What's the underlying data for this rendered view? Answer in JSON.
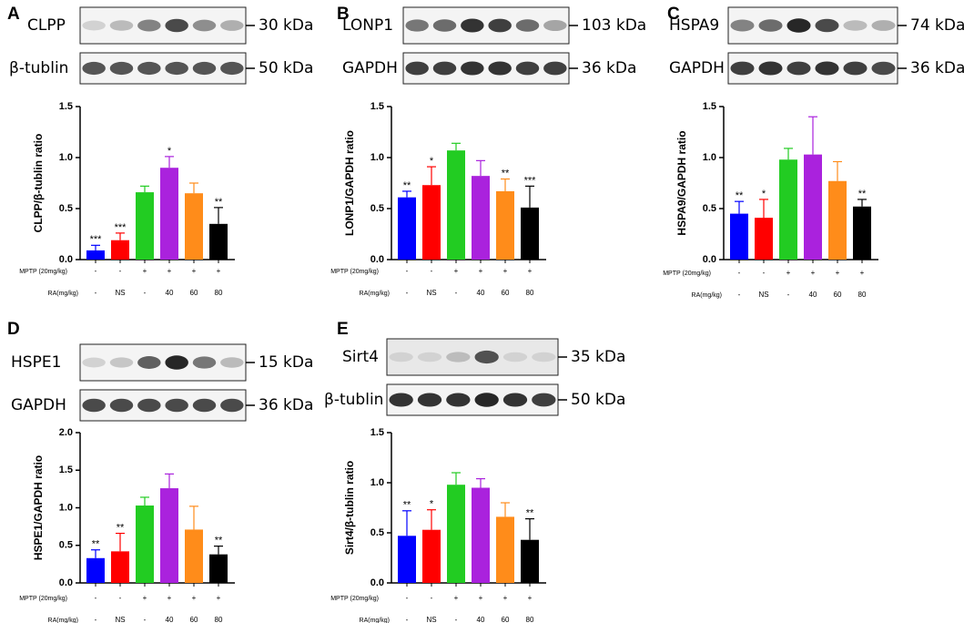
{
  "chart_data": [
    {
      "type": "bar",
      "panel": "A",
      "blot": [
        {
          "protein": "CLPP",
          "size": "30 kDa"
        },
        {
          "protein": "β-tublin",
          "size": "50 kDa"
        }
      ],
      "ylabel": "CLPP/β-tublin  ratio",
      "ylim": [
        0,
        1.5
      ],
      "yticks": [
        {
          "value": 0,
          "label": "0.0"
        },
        0.5,
        {
          "value": 1,
          "label": "1.0"
        },
        1.5
      ],
      "values": [
        0.09,
        0.19,
        0.66,
        0.9,
        0.65,
        0.35
      ],
      "errors": [
        0.05,
        0.07,
        0.06,
        0.11,
        0.1,
        0.16
      ],
      "significance": [
        "***",
        "***",
        null,
        "*",
        null,
        "**"
      ],
      "colors": [
        "#0000ff",
        "#ff0000",
        "#22cc22",
        "#aa22dd",
        "#ff8c1a",
        "#000000"
      ],
      "mptp_label": "MPTP (20mg/kg)",
      "mptp": [
        "-",
        "-",
        "+",
        "+",
        "+",
        "+"
      ],
      "ra_label": "RA(mg/kg)",
      "ra": [
        "-",
        "NS",
        "-",
        "40",
        "60",
        "80"
      ]
    },
    {
      "type": "bar",
      "panel": "B",
      "blot": [
        {
          "protein": "LONP1",
          "size": "103 kDa"
        },
        {
          "protein": "GAPDH",
          "size": "36 kDa"
        }
      ],
      "ylabel": "LONP1/GAPDH  ratio",
      "ylim": [
        0,
        1.5
      ],
      "yticks": [
        {
          "value": 0,
          "label": "0.0"
        },
        0.5,
        {
          "value": 1,
          "label": "1.0"
        },
        1.5
      ],
      "values": [
        0.61,
        0.73,
        1.07,
        0.82,
        0.67,
        0.51
      ],
      "errors": [
        0.06,
        0.18,
        0.07,
        0.15,
        0.12,
        0.21
      ],
      "significance": [
        "**",
        "*",
        null,
        null,
        "**",
        "***"
      ],
      "colors": [
        "#0000ff",
        "#ff0000",
        "#22cc22",
        "#aa22dd",
        "#ff8c1a",
        "#000000"
      ],
      "mptp_label": "MPTP (20mg/kg)",
      "mptp": [
        "-",
        "-",
        "+",
        "+",
        "+",
        "+"
      ],
      "ra_label": "RA(mg/kg)",
      "ra": [
        "-",
        "NS",
        "-",
        "40",
        "60",
        "80"
      ]
    },
    {
      "type": "bar",
      "panel": "C",
      "blot": [
        {
          "protein": "HSPA9",
          "size": "74 kDa"
        },
        {
          "protein": "GAPDH",
          "size": "36 kDa"
        }
      ],
      "ylabel": "HSPA9/GAPDH  ratio",
      "ylim": [
        0,
        1.5
      ],
      "yticks": [
        {
          "value": 0,
          "label": "0.0"
        },
        0.5,
        {
          "value": 1,
          "label": "1.0"
        },
        1.5
      ],
      "values": [
        0.45,
        0.41,
        0.98,
        1.03,
        0.77,
        0.52
      ],
      "errors": [
        0.12,
        0.18,
        0.11,
        0.37,
        0.19,
        0.07
      ],
      "significance": [
        "**",
        "*",
        null,
        null,
        null,
        "**"
      ],
      "colors": [
        "#0000ff",
        "#ff0000",
        "#22cc22",
        "#aa22dd",
        "#ff8c1a",
        "#000000"
      ],
      "mptp_label": "MPTP (20mg/kg)",
      "mptp": [
        "-",
        "-",
        "+",
        "+",
        "+",
        "+"
      ],
      "ra_label": "RA(mg/kg)",
      "ra": [
        "-",
        "NS",
        "-",
        "40",
        "60",
        "80"
      ]
    },
    {
      "type": "bar",
      "panel": "D",
      "blot": [
        {
          "protein": "HSPE1",
          "size": "15 kDa"
        },
        {
          "protein": "GAPDH",
          "size": "36 kDa"
        }
      ],
      "ylabel": "HSPE1/GAPDH  ratio",
      "ylim": [
        0,
        2
      ],
      "yticks": [
        {
          "value": 0,
          "label": "0.0"
        },
        0.5,
        {
          "value": 1,
          "label": "1.0"
        },
        1.5,
        {
          "value": 2,
          "label": "2.0"
        }
      ],
      "values": [
        0.33,
        0.42,
        1.03,
        1.26,
        0.71,
        0.38
      ],
      "errors": [
        0.11,
        0.24,
        0.11,
        0.19,
        0.31,
        0.11
      ],
      "significance": [
        "**",
        "**",
        null,
        null,
        null,
        "**"
      ],
      "colors": [
        "#0000ff",
        "#ff0000",
        "#22cc22",
        "#aa22dd",
        "#ff8c1a",
        "#000000"
      ],
      "mptp_label": "MPTP (20mg/kg)",
      "mptp": [
        "-",
        "-",
        "+",
        "+",
        "+",
        "+"
      ],
      "ra_label": "RA(mg/kg)",
      "ra": [
        "-",
        "NS",
        "-",
        "40",
        "60",
        "80"
      ]
    },
    {
      "type": "bar",
      "panel": "E",
      "blot": [
        {
          "protein": "Sirt4",
          "size": "35 kDa"
        },
        {
          "protein": "β-tublin",
          "size": "50 kDa"
        }
      ],
      "ylabel": "Sirt4/β-tublin ratio",
      "ylim": [
        0,
        1.5
      ],
      "yticks": [
        {
          "value": 0,
          "label": "0.0"
        },
        0.5,
        {
          "value": 1,
          "label": "1.0"
        },
        1.5
      ],
      "values": [
        0.47,
        0.53,
        0.98,
        0.95,
        0.66,
        0.43
      ],
      "errors": [
        0.25,
        0.2,
        0.12,
        0.09,
        0.14,
        0.21
      ],
      "significance": [
        "**",
        "*",
        null,
        null,
        null,
        "**"
      ],
      "colors": [
        "#0000ff",
        "#ff0000",
        "#22cc22",
        "#aa22dd",
        "#ff8c1a",
        "#000000"
      ],
      "mptp_label": "MPTP (20mg/kg)",
      "mptp": [
        "-",
        "-",
        "+",
        "+",
        "+",
        "+"
      ],
      "ra_label": "RA(mg/kg)",
      "ra": [
        "-",
        "NS",
        "-",
        "40",
        "60",
        "80"
      ]
    }
  ]
}
